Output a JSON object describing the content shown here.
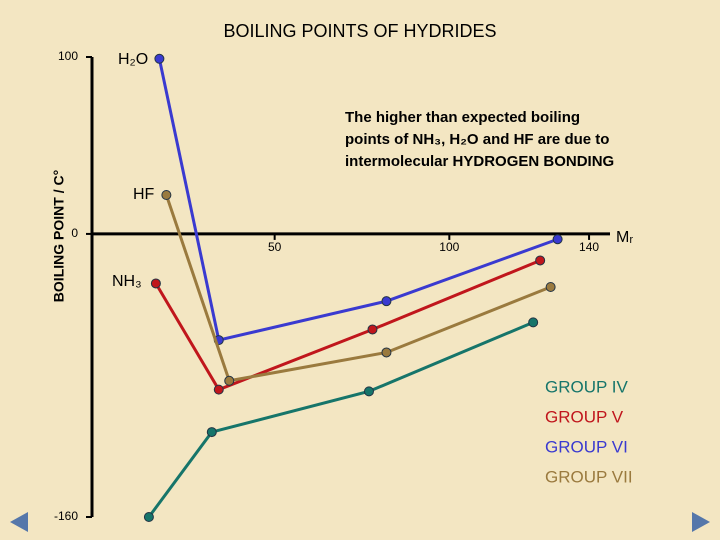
{
  "chart_data": {
    "type": "line",
    "title": "BOILING POINTS OF HYDRIDES",
    "y_label": "BOILING POINT / C°",
    "x_label": "Mᵣ",
    "annotation_lines": [
      "The higher than expected boiling",
      "points of NH₃, H₂O and HF are due to",
      "intermolecular HYDROGEN BONDING"
    ],
    "point_labels": [
      "H₂O",
      "HF",
      "NH₃"
    ],
    "xlim": [
      0,
      148
    ],
    "ylim": [
      -160,
      100
    ],
    "xticks": [
      50,
      100,
      140
    ],
    "yticks": [
      -160,
      0,
      100
    ],
    "series": [
      {
        "name": "GROUP IV",
        "color": "#16756a",
        "x": [
          14,
          32,
          77,
          124
        ],
        "values": [
          -160,
          -112,
          -89,
          -50
        ]
      },
      {
        "name": "GROUP V",
        "color": "#c0161c",
        "x": [
          16,
          34,
          78,
          126
        ],
        "values": [
          -28,
          -88,
          -54,
          -15
        ]
      },
      {
        "name": "GROUP VI",
        "color": "#3a3ad0",
        "x": [
          17,
          34,
          82,
          131
        ],
        "values": [
          99,
          -60,
          -38,
          -3
        ]
      },
      {
        "name": "GROUP VII",
        "color": "#9a7a3e",
        "x": [
          19,
          37,
          82,
          129
        ],
        "values": [
          22,
          -83,
          -67,
          -30
        ]
      }
    ]
  }
}
